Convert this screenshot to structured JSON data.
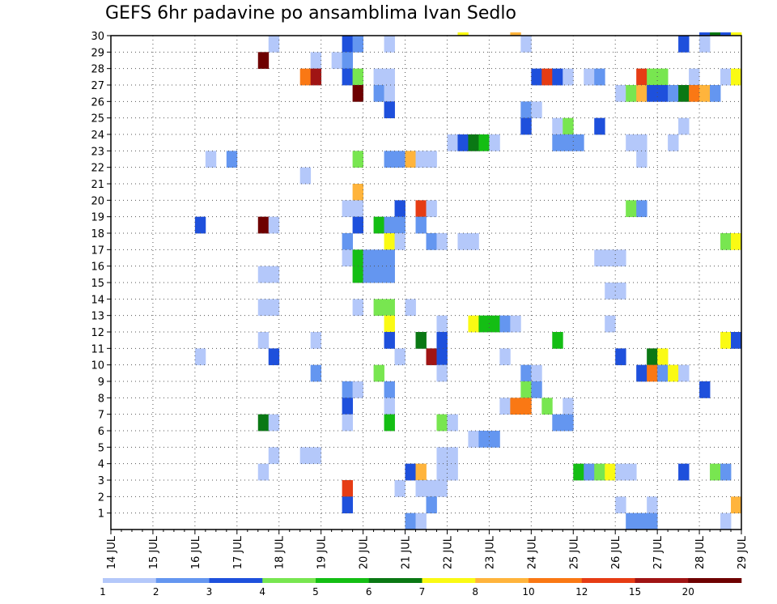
{
  "chart_data": {
    "type": "heatmap",
    "title": "GEFS 6hr padavine po ansamblima Ivan Sedlo",
    "x_ticks": [
      "14 JUL",
      "15 JUL",
      "16 JUL",
      "17 JUL",
      "18 JUL",
      "19 JUL",
      "20 JUL",
      "21 JUL",
      "22 JUL",
      "23 JUL",
      "24 JUL",
      "25 JUL",
      "26 JUL",
      "27 JUL",
      "28 JUL",
      "29 JUL"
    ],
    "y_ticks": [
      1,
      2,
      3,
      4,
      5,
      6,
      7,
      8,
      9,
      10,
      11,
      12,
      13,
      14,
      15,
      16,
      17,
      18,
      19,
      20,
      21,
      22,
      23,
      24,
      25,
      26,
      27,
      28,
      29,
      30
    ],
    "xlim": [
      "14 JUL 00",
      "29 JUL 00"
    ],
    "ylim": [
      0,
      30
    ],
    "grid": true,
    "time_step_hours": 6,
    "cell_encoding": "[member, time_step_from_14_JUL_00, color_class]",
    "colorbar": {
      "labels": [
        "1",
        "2",
        "3",
        "4",
        "5",
        "6",
        "7",
        "8",
        "10",
        "12",
        "15",
        "20"
      ],
      "colors": [
        "#b4c8fa",
        "#6496f0",
        "#1e50dc",
        "#78e650",
        "#14be14",
        "#0a7814",
        "#fafa14",
        "#ffb43c",
        "#fa7814",
        "#e63c14",
        "#a01414",
        "#6e0000"
      ]
    },
    "cells": [
      [
        30,
        33,
        6
      ],
      [
        30,
        38,
        7
      ],
      [
        30,
        56,
        2
      ],
      [
        30,
        57,
        5
      ],
      [
        30,
        58,
        2
      ],
      [
        30,
        59,
        6
      ],
      [
        29,
        15,
        0
      ],
      [
        29,
        22,
        2
      ],
      [
        29,
        23,
        1
      ],
      [
        29,
        26,
        0
      ],
      [
        29,
        39,
        0
      ],
      [
        29,
        54,
        2
      ],
      [
        29,
        56,
        0
      ],
      [
        28,
        14,
        11
      ],
      [
        28,
        19,
        0
      ],
      [
        28,
        21,
        0
      ],
      [
        28,
        22,
        1
      ],
      [
        27,
        18,
        8
      ],
      [
        27,
        19,
        10
      ],
      [
        27,
        22,
        2
      ],
      [
        27,
        23,
        3
      ],
      [
        27,
        25,
        0
      ],
      [
        27,
        26,
        0
      ],
      [
        27,
        40,
        2
      ],
      [
        27,
        41,
        9
      ],
      [
        27,
        42,
        2
      ],
      [
        27,
        43,
        0
      ],
      [
        27,
        45,
        0
      ],
      [
        27,
        46,
        1
      ],
      [
        27,
        50,
        9
      ],
      [
        27,
        51,
        3
      ],
      [
        27,
        52,
        3
      ],
      [
        27,
        55,
        0
      ],
      [
        27,
        58,
        0
      ],
      [
        27,
        59,
        6
      ],
      [
        26,
        23,
        11
      ],
      [
        26,
        25,
        1
      ],
      [
        26,
        26,
        0
      ],
      [
        26,
        48,
        0
      ],
      [
        26,
        49,
        3
      ],
      [
        26,
        50,
        7
      ],
      [
        26,
        51,
        2
      ],
      [
        26,
        52,
        2
      ],
      [
        26,
        53,
        1
      ],
      [
        26,
        54,
        5
      ],
      [
        26,
        55,
        8
      ],
      [
        26,
        56,
        7
      ],
      [
        26,
        57,
        1
      ],
      [
        25,
        26,
        2
      ],
      [
        25,
        39,
        1
      ],
      [
        25,
        40,
        0
      ],
      [
        24,
        39,
        2
      ],
      [
        24,
        42,
        0
      ],
      [
        24,
        43,
        3
      ],
      [
        24,
        46,
        2
      ],
      [
        24,
        54,
        0
      ],
      [
        23,
        32,
        0
      ],
      [
        23,
        33,
        2
      ],
      [
        23,
        34,
        5
      ],
      [
        23,
        35,
        4
      ],
      [
        23,
        36,
        0
      ],
      [
        23,
        42,
        1
      ],
      [
        23,
        43,
        1
      ],
      [
        23,
        44,
        1
      ],
      [
        23,
        49,
        0
      ],
      [
        23,
        50,
        0
      ],
      [
        23,
        53,
        0
      ],
      [
        22,
        9,
        0
      ],
      [
        22,
        11,
        1
      ],
      [
        22,
        23,
        3
      ],
      [
        22,
        26,
        1
      ],
      [
        22,
        27,
        1
      ],
      [
        22,
        28,
        7
      ],
      [
        22,
        29,
        0
      ],
      [
        22,
        30,
        0
      ],
      [
        22,
        50,
        0
      ],
      [
        21,
        18,
        0
      ],
      [
        20,
        23,
        7
      ],
      [
        19,
        22,
        0
      ],
      [
        19,
        23,
        0
      ],
      [
        19,
        27,
        2
      ],
      [
        19,
        29,
        9
      ],
      [
        19,
        30,
        0
      ],
      [
        19,
        49,
        3
      ],
      [
        19,
        50,
        1
      ],
      [
        18,
        8,
        2
      ],
      [
        18,
        14,
        11
      ],
      [
        18,
        15,
        0
      ],
      [
        18,
        23,
        2
      ],
      [
        18,
        25,
        4
      ],
      [
        18,
        26,
        1
      ],
      [
        18,
        27,
        1
      ],
      [
        18,
        29,
        1
      ],
      [
        17,
        22,
        1
      ],
      [
        17,
        26,
        6
      ],
      [
        17,
        27,
        0
      ],
      [
        17,
        30,
        1
      ],
      [
        17,
        31,
        0
      ],
      [
        17,
        33,
        0
      ],
      [
        17,
        34,
        0
      ],
      [
        17,
        58,
        3
      ],
      [
        17,
        59,
        6
      ],
      [
        16,
        22,
        0
      ],
      [
        16,
        23,
        4
      ],
      [
        16,
        24,
        1
      ],
      [
        16,
        25,
        1
      ],
      [
        16,
        26,
        1
      ],
      [
        16,
        46,
        0
      ],
      [
        16,
        47,
        0
      ],
      [
        16,
        48,
        0
      ],
      [
        15,
        14,
        0
      ],
      [
        15,
        15,
        0
      ],
      [
        15,
        23,
        4
      ],
      [
        15,
        24,
        1
      ],
      [
        15,
        25,
        1
      ],
      [
        15,
        26,
        1
      ],
      [
        14,
        47,
        0
      ],
      [
        14,
        48,
        0
      ],
      [
        13,
        14,
        0
      ],
      [
        13,
        15,
        0
      ],
      [
        13,
        23,
        0
      ],
      [
        13,
        25,
        3
      ],
      [
        13,
        26,
        3
      ],
      [
        13,
        28,
        0
      ],
      [
        12,
        26,
        6
      ],
      [
        12,
        31,
        0
      ],
      [
        12,
        34,
        6
      ],
      [
        12,
        35,
        4
      ],
      [
        12,
        36,
        4
      ],
      [
        12,
        37,
        1
      ],
      [
        12,
        38,
        0
      ],
      [
        12,
        47,
        0
      ],
      [
        11,
        14,
        0
      ],
      [
        11,
        19,
        0
      ],
      [
        11,
        26,
        2
      ],
      [
        11,
        29,
        5
      ],
      [
        11,
        31,
        2
      ],
      [
        11,
        42,
        4
      ],
      [
        11,
        58,
        6
      ],
      [
        11,
        59,
        2
      ],
      [
        10,
        8,
        0
      ],
      [
        10,
        15,
        2
      ],
      [
        10,
        27,
        0
      ],
      [
        10,
        30,
        10
      ],
      [
        10,
        31,
        2
      ],
      [
        10,
        37,
        0
      ],
      [
        10,
        48,
        2
      ],
      [
        10,
        51,
        5
      ],
      [
        10,
        52,
        6
      ],
      [
        9,
        19,
        1
      ],
      [
        9,
        25,
        3
      ],
      [
        9,
        31,
        0
      ],
      [
        9,
        39,
        1
      ],
      [
        9,
        40,
        0
      ],
      [
        9,
        50,
        2
      ],
      [
        9,
        51,
        8
      ],
      [
        9,
        52,
        1
      ],
      [
        9,
        53,
        6
      ],
      [
        9,
        54,
        0
      ],
      [
        8,
        22,
        1
      ],
      [
        8,
        23,
        0
      ],
      [
        8,
        26,
        1
      ],
      [
        8,
        39,
        3
      ],
      [
        8,
        40,
        1
      ],
      [
        8,
        56,
        2
      ],
      [
        7,
        22,
        2
      ],
      [
        7,
        26,
        0
      ],
      [
        7,
        37,
        0
      ],
      [
        7,
        38,
        8
      ],
      [
        7,
        39,
        8
      ],
      [
        7,
        41,
        3
      ],
      [
        7,
        43,
        0
      ],
      [
        6,
        14,
        5
      ],
      [
        6,
        15,
        0
      ],
      [
        6,
        22,
        0
      ],
      [
        6,
        26,
        4
      ],
      [
        6,
        31,
        3
      ],
      [
        6,
        32,
        0
      ],
      [
        6,
        42,
        1
      ],
      [
        6,
        43,
        1
      ],
      [
        5,
        34,
        0
      ],
      [
        5,
        35,
        1
      ],
      [
        5,
        36,
        1
      ],
      [
        4,
        15,
        0
      ],
      [
        4,
        18,
        0
      ],
      [
        4,
        19,
        0
      ],
      [
        4,
        31,
        0
      ],
      [
        4,
        32,
        0
      ],
      [
        3,
        14,
        0
      ],
      [
        3,
        28,
        2
      ],
      [
        3,
        29,
        7
      ],
      [
        3,
        31,
        0
      ],
      [
        3,
        32,
        0
      ],
      [
        3,
        44,
        4
      ],
      [
        3,
        45,
        1
      ],
      [
        3,
        46,
        3
      ],
      [
        3,
        47,
        6
      ],
      [
        3,
        48,
        0
      ],
      [
        3,
        49,
        0
      ],
      [
        3,
        54,
        2
      ],
      [
        3,
        57,
        3
      ],
      [
        3,
        58,
        1
      ],
      [
        2,
        22,
        9
      ],
      [
        2,
        27,
        0
      ],
      [
        2,
        29,
        0
      ],
      [
        2,
        30,
        0
      ],
      [
        2,
        31,
        0
      ],
      [
        1,
        22,
        2
      ],
      [
        1,
        30,
        1
      ],
      [
        1,
        48,
        0
      ],
      [
        1,
        51,
        0
      ],
      [
        1,
        59,
        7
      ],
      [
        0,
        28,
        1
      ],
      [
        0,
        29,
        0
      ],
      [
        0,
        49,
        1
      ],
      [
        0,
        50,
        1
      ],
      [
        0,
        51,
        1
      ],
      [
        0,
        58,
        0
      ]
    ]
  }
}
